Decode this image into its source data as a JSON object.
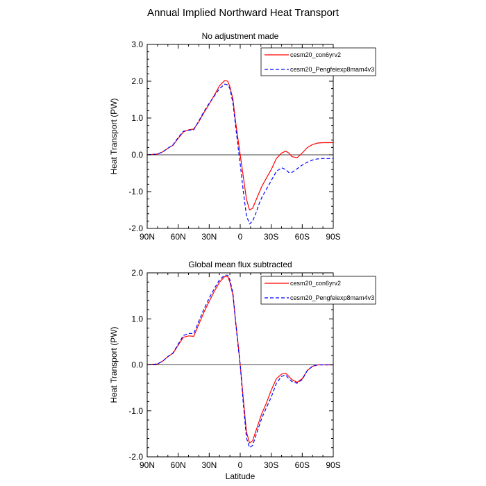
{
  "figure_title": "Annual Implied Northward Heat Transport",
  "colors": {
    "series1": "#ff0000",
    "series2": "#0000ff",
    "axis": "#000000"
  },
  "chart_data": [
    {
      "type": "line",
      "title": "No adjustment made",
      "ylabel": "Heat Transport (PW)",
      "xlabel": "",
      "x_direction": "90N to 90S (latitude, north positive)",
      "xlim": [
        90,
        -90
      ],
      "ylim": [
        -2.0,
        3.0
      ],
      "x_ticks": [
        90,
        60,
        30,
        0,
        -30,
        -60,
        -90
      ],
      "x_tick_labels": [
        "90N",
        "60N",
        "30N",
        "0",
        "30S",
        "60S",
        "90S"
      ],
      "y_ticks": [
        -2.0,
        -1.0,
        0.0,
        1.0,
        2.0,
        3.0
      ],
      "y_tick_labels": [
        "-2.0",
        "-1.0",
        "0.0",
        "1.0",
        "2.0",
        "3.0"
      ],
      "zero_line": true,
      "legend_position": "top-right",
      "x": [
        90,
        80,
        75,
        70,
        65,
        60,
        55,
        50,
        45,
        40,
        35,
        30,
        25,
        20,
        15,
        12,
        10,
        7,
        5,
        2,
        0,
        -3,
        -6,
        -9,
        -12,
        -15,
        -18,
        -21,
        -25,
        -30,
        -35,
        -40,
        -44,
        -47,
        -50,
        -55,
        -60,
        -65,
        -70,
        -75,
        -80,
        -85,
        -90
      ],
      "series": [
        {
          "name": "cesm20_con6yrv2",
          "style": "solid",
          "values": [
            0.0,
            0.02,
            0.08,
            0.18,
            0.26,
            0.45,
            0.62,
            0.68,
            0.7,
            0.9,
            1.15,
            1.38,
            1.62,
            1.88,
            2.02,
            2.0,
            1.85,
            1.5,
            1.0,
            0.4,
            0.0,
            -0.6,
            -1.2,
            -1.5,
            -1.45,
            -1.25,
            -1.05,
            -0.85,
            -0.65,
            -0.4,
            -0.1,
            0.05,
            0.1,
            0.05,
            -0.05,
            -0.08,
            0.05,
            0.2,
            0.28,
            0.32,
            0.33,
            0.33,
            0.33
          ]
        },
        {
          "name": "cesm20_Pengfeiexp8mam4v3",
          "style": "dashed",
          "values": [
            0.0,
            0.02,
            0.08,
            0.18,
            0.27,
            0.47,
            0.64,
            0.67,
            0.68,
            0.92,
            1.18,
            1.4,
            1.6,
            1.8,
            1.92,
            1.9,
            1.8,
            1.4,
            0.9,
            0.2,
            -0.25,
            -1.0,
            -1.65,
            -1.88,
            -1.8,
            -1.6,
            -1.35,
            -1.15,
            -0.95,
            -0.7,
            -0.45,
            -0.35,
            -0.4,
            -0.48,
            -0.48,
            -0.38,
            -0.28,
            -0.2,
            -0.14,
            -0.11,
            -0.1,
            -0.1,
            -0.1
          ]
        }
      ]
    },
    {
      "type": "line",
      "title": "Global mean flux subtracted",
      "ylabel": "Heat Transport (PW)",
      "xlabel": "Latitude",
      "x_direction": "90N to 90S (latitude, north positive)",
      "xlim": [
        90,
        -90
      ],
      "ylim": [
        -2.0,
        2.0
      ],
      "x_ticks": [
        90,
        60,
        30,
        0,
        -30,
        -60,
        -90
      ],
      "x_tick_labels": [
        "90N",
        "60N",
        "30N",
        "0",
        "30S",
        "60S",
        "90S"
      ],
      "y_ticks": [
        -2.0,
        -1.0,
        0.0,
        1.0,
        2.0
      ],
      "y_tick_labels": [
        "-2.0",
        "-1.0",
        "0.0",
        "1.0",
        "2.0"
      ],
      "zero_line": true,
      "legend_position": "top-right",
      "x": [
        90,
        80,
        75,
        70,
        65,
        60,
        55,
        50,
        45,
        40,
        35,
        30,
        25,
        20,
        15,
        12,
        10,
        7,
        5,
        2,
        0,
        -3,
        -6,
        -9,
        -12,
        -15,
        -18,
        -21,
        -25,
        -30,
        -35,
        -40,
        -44,
        -47,
        -50,
        -55,
        -60,
        -65,
        -70,
        -75,
        -80,
        -85,
        -90
      ],
      "series": [
        {
          "name": "cesm20_con6yrv2",
          "style": "solid",
          "values": [
            0.0,
            0.02,
            0.08,
            0.18,
            0.25,
            0.43,
            0.6,
            0.63,
            0.62,
            0.88,
            1.15,
            1.38,
            1.6,
            1.8,
            1.92,
            1.92,
            1.8,
            1.5,
            1.05,
            0.45,
            0.0,
            -0.75,
            -1.45,
            -1.7,
            -1.65,
            -1.45,
            -1.25,
            -1.05,
            -0.85,
            -0.55,
            -0.3,
            -0.2,
            -0.18,
            -0.25,
            -0.32,
            -0.38,
            -0.3,
            -0.12,
            -0.03,
            0.0,
            0.0,
            0.0,
            0.0
          ]
        },
        {
          "name": "cesm20_Pengfeiexp8mam4v3",
          "style": "dashed",
          "values": [
            0.0,
            0.02,
            0.08,
            0.18,
            0.26,
            0.45,
            0.64,
            0.68,
            0.68,
            0.95,
            1.22,
            1.45,
            1.66,
            1.85,
            1.95,
            1.95,
            1.85,
            1.55,
            1.05,
            0.4,
            0.0,
            -0.85,
            -1.58,
            -1.8,
            -1.75,
            -1.55,
            -1.35,
            -1.15,
            -0.95,
            -0.7,
            -0.4,
            -0.25,
            -0.22,
            -0.3,
            -0.36,
            -0.4,
            -0.32,
            -0.12,
            -0.03,
            0.0,
            0.0,
            0.0,
            0.0
          ]
        }
      ]
    }
  ]
}
